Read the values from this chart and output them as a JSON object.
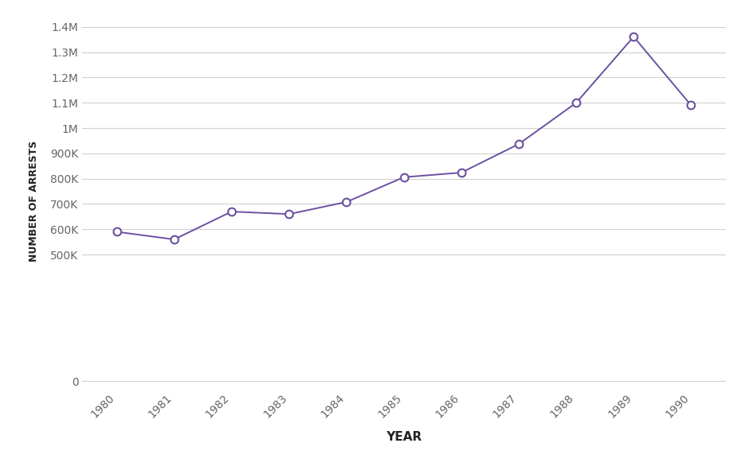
{
  "years": [
    1980,
    1981,
    1982,
    1983,
    1984,
    1985,
    1986,
    1987,
    1988,
    1989,
    1990
  ],
  "arrests": [
    590000,
    560000,
    670000,
    660000,
    708000,
    806000,
    824000,
    937000,
    1100000,
    1361000,
    1090000
  ],
  "line_color": "#6b50a1",
  "marker_face": "#ffffff",
  "marker_edge": "#6b50a1",
  "xlabel": "YEAR",
  "ylabel": "NUMBER OF ARRESTS",
  "background_color": "#ffffff",
  "grid_color": "#d0d0d0",
  "yticks": [
    0,
    500000,
    600000,
    700000,
    800000,
    900000,
    1000000,
    1100000,
    1200000,
    1300000,
    1400000
  ],
  "ytick_labels": [
    "0",
    "500K",
    "600K",
    "700K",
    "800K",
    "900K",
    "1M",
    "1.1M",
    "1.2M",
    "1.3M",
    "1.4M"
  ],
  "ylim": [
    -30000,
    1450000
  ],
  "xlim": [
    1979.4,
    1990.6
  ],
  "xlabel_fontsize": 11,
  "ylabel_fontsize": 9,
  "tick_fontsize": 10,
  "axis_label_color": "#222222",
  "tick_label_color": "#666666"
}
